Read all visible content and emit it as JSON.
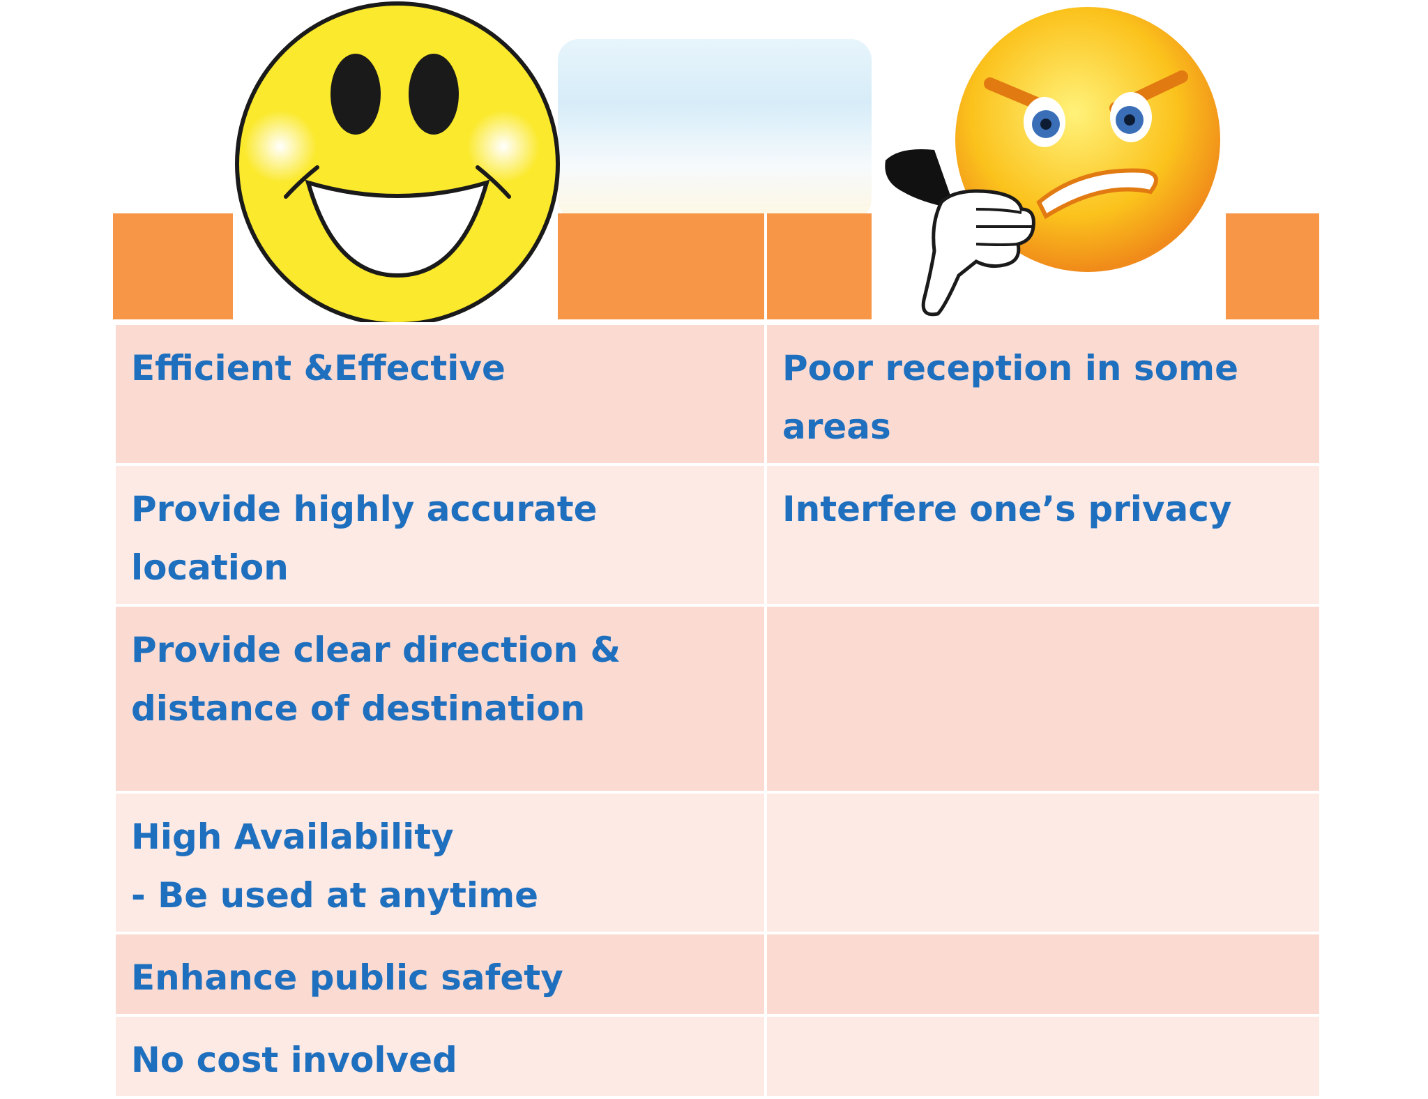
{
  "table": {
    "rows": [
      {
        "pro": [
          "Efficient &Effective"
        ],
        "con": [
          "Poor reception in some",
          "areas"
        ]
      },
      {
        "pro": [
          "Provide highly accurate",
          "location"
        ],
        "con": [
          "Interfere one’s privacy"
        ]
      },
      {
        "pro": [
          "Provide clear direction &",
          "distance of destination"
        ],
        "con": []
      },
      {
        "pro": [
          "High Availability",
          "- Be used at anytime"
        ],
        "con": []
      },
      {
        "pro": [
          "Enhance public safety"
        ],
        "con": []
      },
      {
        "pro": [
          "No cost involved"
        ],
        "con": []
      }
    ]
  },
  "colors": {
    "header": "#f79646",
    "row_odd": "#fbdbd1",
    "row_even": "#fdeae5",
    "text": "#1f6fbf"
  },
  "icons": {
    "pro_header": "happy-smiley-icon",
    "con_header": "angry-thumbs-down-icon"
  }
}
